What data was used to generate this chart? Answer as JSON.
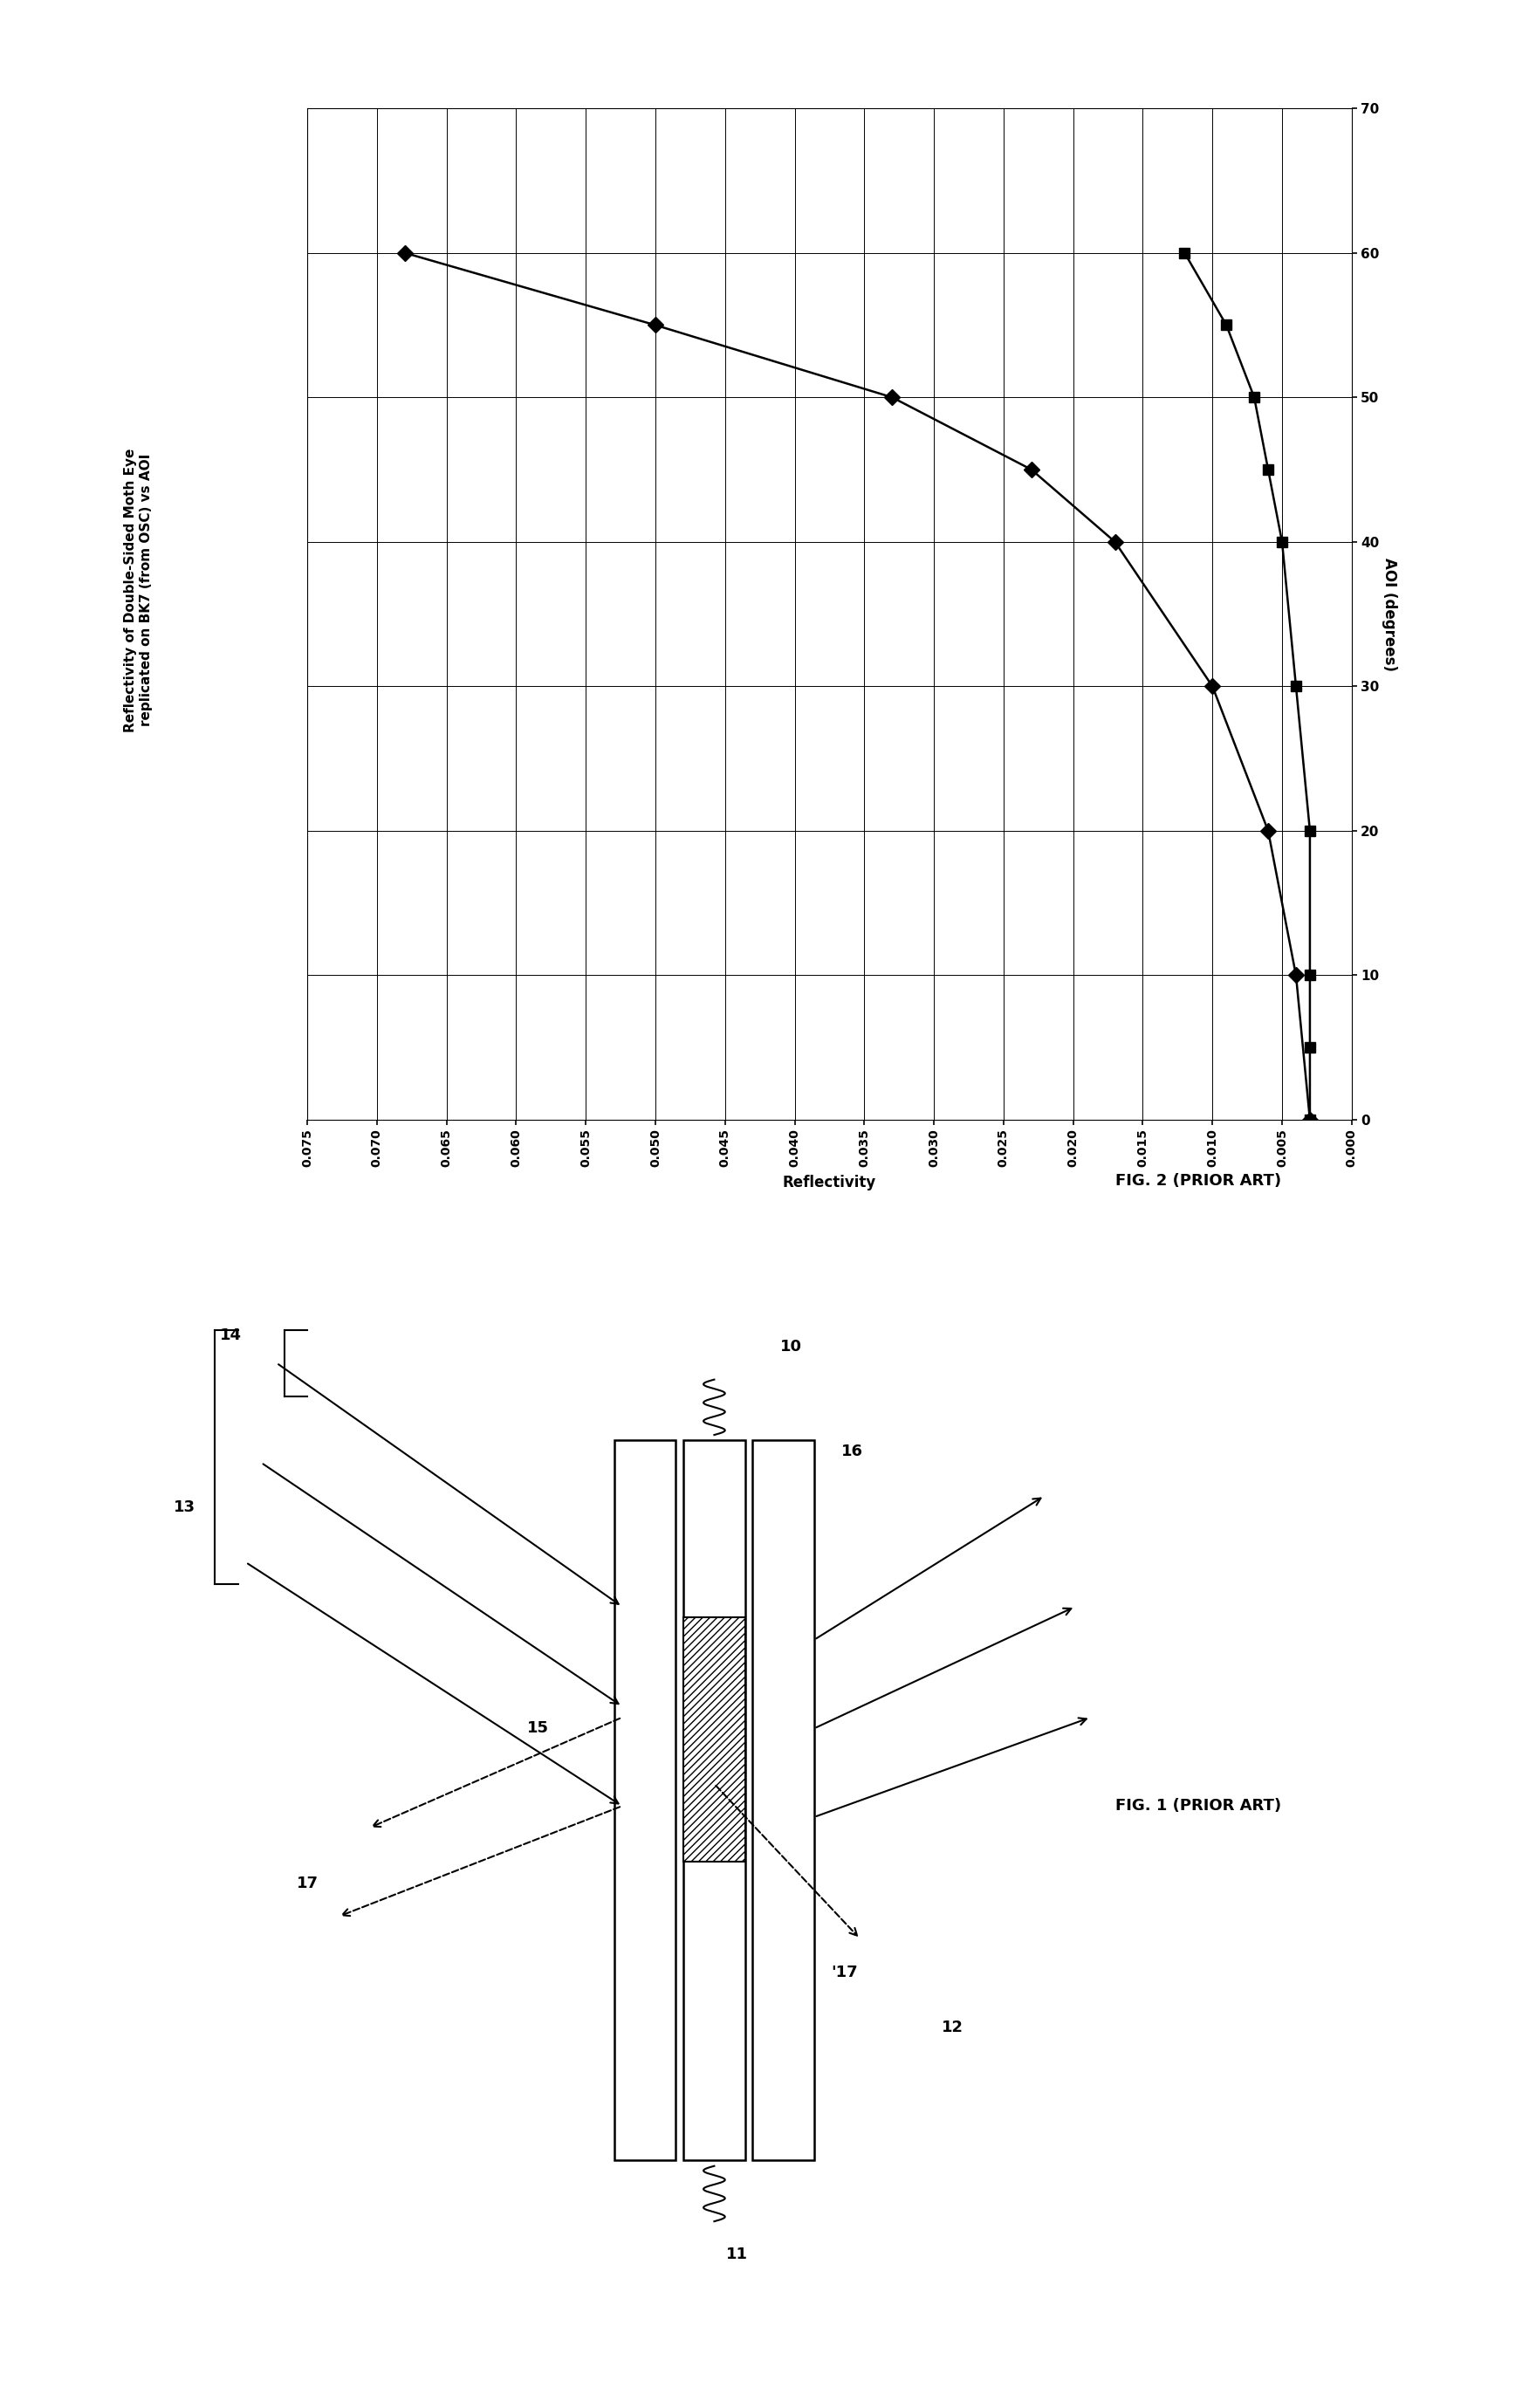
{
  "title_line1": "Reflectivity of Double-Sided Moth Eye",
  "title_line2": "replicated on BK7 (from OSC) vs AOI",
  "x_label": "AOI (degrees)",
  "y_label": "Reflectivity",
  "fig1_caption": "FIG. 1 (PRIOR ART)",
  "fig2_caption": "FIG. 2 (PRIOR ART)",
  "TM_aoi": [
    0,
    10,
    20,
    30,
    40,
    45,
    50,
    55,
    60
  ],
  "TM_refl": [
    0.003,
    0.004,
    0.006,
    0.01,
    0.017,
    0.023,
    0.033,
    0.05,
    0.068
  ],
  "TE_aoi": [
    0,
    5,
    10,
    20,
    30,
    40,
    45,
    50,
    55,
    60
  ],
  "TE_refl": [
    0.003,
    0.003,
    0.003,
    0.003,
    0.004,
    0.005,
    0.006,
    0.007,
    0.009,
    0.012
  ],
  "refl_ticks": [
    0,
    0.005,
    0.01,
    0.015,
    0.02,
    0.025,
    0.03,
    0.035,
    0.04,
    0.045,
    0.05,
    0.055,
    0.06,
    0.065,
    0.07,
    0.075
  ],
  "aoi_ticks": [
    0,
    10,
    20,
    30,
    40,
    50,
    60,
    70
  ],
  "bg_color": "#ffffff",
  "line_color": "#000000"
}
